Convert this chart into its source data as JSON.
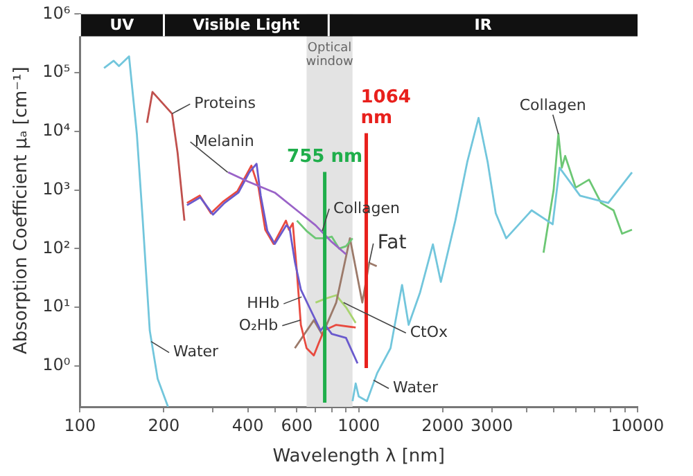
{
  "chart_data": {
    "type": "line",
    "xlabel": "Wavelength λ [nm]",
    "ylabel": "Absorption Coefficient μₐ [cm⁻¹]",
    "log": "xy",
    "marker": "none",
    "line_style": "solid",
    "xlim": [
      100,
      10000
    ],
    "ylim": [
      0.2,
      1000000
    ],
    "xticks": [
      100,
      200,
      {
        "value": 300,
        "label": null
      },
      400,
      {
        "value": 500,
        "label": null
      },
      600,
      {
        "value": 700,
        "label": null
      },
      {
        "value": 800,
        "label": null
      },
      {
        "value": 900,
        "label": null
      },
      1000,
      2000,
      3000,
      {
        "value": 4000,
        "label": null
      },
      {
        "value": 5000,
        "label": null
      },
      {
        "value": 6000,
        "label": null
      },
      {
        "value": 7000,
        "label": null
      },
      {
        "value": 8000,
        "label": null
      },
      {
        "value": 9000,
        "label": null
      },
      10000
    ],
    "yticks": [
      {
        "value": 1,
        "label": "10⁰"
      },
      {
        "value": 10,
        "label": "10¹"
      },
      {
        "value": 100,
        "label": "10²"
      },
      {
        "value": 1000,
        "label": "10³"
      },
      {
        "value": 10000,
        "label": "10⁴"
      },
      {
        "value": 100000,
        "label": "10⁵"
      },
      {
        "value": 1000000,
        "label": "10⁶"
      }
    ],
    "series": [
      {
        "color": "#72c6dc",
        "x": [
          122,
          132,
          138,
          150,
          160,
          168,
          178,
          190,
          207,
          600,
          950,
          975,
          1000,
          1070,
          1164,
          1300,
          1430,
          1510,
          1660,
          1845,
          1970,
          2220,
          2450,
          2690,
          2900,
          3100,
          3380,
          4170,
          4960,
          5250,
          6220,
          7850,
          9550
        ],
        "values": [
          120000,
          160000,
          130000,
          190000,
          9000,
          300,
          4,
          0.6,
          0.2,
          null,
          0.25,
          0.5,
          0.3,
          0.25,
          0.75,
          2,
          24,
          5,
          18,
          118,
          27,
          300,
          3000,
          17000,
          3000,
          400,
          150,
          450,
          260,
          2400,
          800,
          600,
          2000
        ]
      },
      {
        "color": "#c0504d",
        "x": [
          174,
          182,
          214,
          224,
          237
        ],
        "values": [
          14000,
          47000,
          20000,
          4300,
          300
        ]
      },
      {
        "color": "#9a63c8",
        "x": [
          340,
          400,
          500,
          600,
          700,
          800,
          900
        ],
        "values": [
          2000,
          1400,
          900,
          450,
          250,
          130,
          80
        ]
      },
      {
        "color": "#6a5acd",
        "x": [
          242,
          270,
          300,
          330,
          370,
          405,
          430,
          445,
          470,
          500,
          550,
          565,
          590,
          620,
          680,
          730,
          757,
          800,
          900,
          990
        ],
        "values": [
          550,
          750,
          380,
          600,
          900,
          2000,
          2800,
          800,
          200,
          120,
          250,
          220,
          60,
          20,
          8,
          4,
          5,
          3.5,
          3,
          1.1
        ]
      },
      {
        "color": "#e84a3f",
        "x": [
          242,
          269,
          295,
          327,
          367,
          412,
          437,
          462,
          495,
          548,
          562,
          580,
          600,
          620,
          650,
          690,
          720,
          750,
          830,
          975
        ],
        "values": [
          600,
          800,
          400,
          640,
          950,
          2600,
          1100,
          210,
          120,
          300,
          210,
          270,
          40,
          5,
          2,
          1.5,
          2.5,
          4,
          5,
          4.5
        ]
      },
      {
        "color": "#6cc774",
        "x": [
          600,
          650,
          700,
          757,
          800,
          850,
          900,
          950,
          3000,
          4600,
          5000,
          5200,
          5350,
          5500,
          6000,
          6700,
          7400,
          8200,
          8800,
          9550
        ],
        "values": [
          300,
          200,
          150,
          150,
          160,
          100,
          110,
          150,
          null,
          85,
          1000,
          9000,
          2400,
          3800,
          1100,
          1500,
          600,
          450,
          180,
          210
        ]
      },
      {
        "color": "#9c7a6a",
        "x": [
          590,
          690,
          740,
          830,
          930,
          1030,
          1090,
          1160
        ],
        "values": [
          2,
          6,
          3.4,
          12,
          150,
          12,
          57,
          50
        ]
      },
      {
        "color": "#a8d46f",
        "x": [
          700,
          760,
          830,
          900,
          975
        ],
        "values": [
          12,
          14,
          16,
          10,
          5.4
        ]
      }
    ],
    "bands": [
      {
        "axis": "x",
        "from": 650,
        "to": 950,
        "label": "Optical window",
        "color": "#e3e3e3"
      },
      {
        "axis": "x",
        "from": 100,
        "to": 200,
        "label": "UV"
      },
      {
        "axis": "x",
        "from": 200,
        "to": 780,
        "label": "Visible Light"
      },
      {
        "axis": "x",
        "from": 780,
        "to": 10000,
        "label": "IR"
      }
    ],
    "ref_lines": [
      {
        "axis": "x",
        "value": 755,
        "label": "755 nm",
        "color": "#1fae4b"
      },
      {
        "axis": "x",
        "value": 1064,
        "label": "1064 nm",
        "color": "#e8201c"
      }
    ],
    "annotations": [
      {
        "text": "Proteins",
        "x": 214,
        "y": 20000
      },
      {
        "text": "Melanin",
        "x": 339,
        "y": 2000
      },
      {
        "text": "Collagen",
        "x": 740,
        "y": 200
      },
      {
        "text": "Fat",
        "x": 1090,
        "y": 57
      },
      {
        "text": "HHb",
        "x": 624,
        "y": 15
      },
      {
        "text": "O₂Hb",
        "x": 617,
        "y": 6
      },
      {
        "text": "CtOx",
        "x": 882,
        "y": 12
      },
      {
        "text": "Water",
        "x": 180,
        "y": 2.6
      },
      {
        "text": "Water",
        "x": 1130,
        "y": 0.57
      },
      {
        "text": "Collagen",
        "x": 5200,
        "y": 9000
      }
    ]
  }
}
